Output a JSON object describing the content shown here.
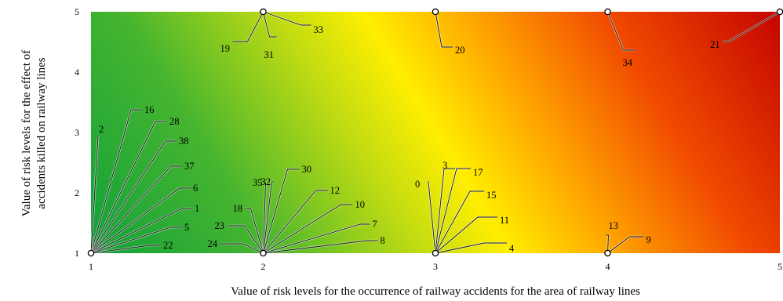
{
  "chart_data": {
    "type": "scatter",
    "title": "",
    "xlabel": "Value of risk levels for the occurrence of railway accidents for the area of railway lines",
    "ylabel_lines": [
      "Value of risk levels for the effect of",
      "accidents killed on railway lines"
    ],
    "xlim": [
      1,
      5
    ],
    "ylim": [
      1,
      5
    ],
    "x_ticks": [
      "1",
      "2",
      "3",
      "4",
      "5"
    ],
    "y_ticks": [
      "1",
      "2",
      "3",
      "4",
      "5"
    ],
    "background": "risk heatmap gradient from green (low x, low y) through yellow to red (high x, high y)",
    "colors": {
      "low": "#10a63a",
      "mid": "#ffee00",
      "high": "#cc0000"
    },
    "points": [
      {
        "x": 1,
        "y": 1,
        "labels": [
          "2",
          "16",
          "28",
          "38",
          "37",
          "6",
          "1",
          "5",
          "22"
        ]
      },
      {
        "x": 2,
        "y": 1,
        "labels": [
          "35",
          "32",
          "30",
          "12",
          "18",
          "10",
          "23",
          "7",
          "24",
          "8"
        ]
      },
      {
        "x": 3,
        "y": 1,
        "labels": [
          "0",
          "3",
          "17",
          "15",
          "11",
          "4"
        ]
      },
      {
        "x": 4,
        "y": 1,
        "labels": [
          "13",
          "9"
        ]
      },
      {
        "x": 2,
        "y": 5,
        "labels": [
          "19",
          "31",
          "33"
        ]
      },
      {
        "x": 3,
        "y": 5,
        "labels": [
          "20"
        ]
      },
      {
        "x": 4,
        "y": 5,
        "labels": [
          "34"
        ]
      },
      {
        "x": 5,
        "y": 5,
        "labels": [
          "21"
        ]
      }
    ]
  }
}
